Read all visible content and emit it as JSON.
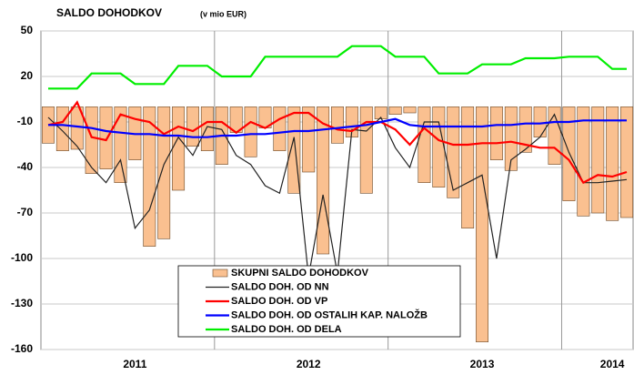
{
  "chart_data": {
    "type": "combo",
    "title": "SALDO DOHODKOV",
    "subtitle": "(v mio EUR)",
    "categories": [
      null,
      null,
      null,
      null,
      null,
      null,
      "2011",
      null,
      null,
      null,
      null,
      null,
      null,
      null,
      null,
      null,
      null,
      null,
      "2012",
      null,
      null,
      null,
      null,
      null,
      null,
      null,
      null,
      null,
      null,
      null,
      "2013",
      null,
      null,
      null,
      null,
      null,
      null,
      null,
      null,
      "2014",
      null
    ],
    "series": [
      {
        "name": "SKUPNI SALDO DOHODKOV",
        "type": "bar",
        "color": "#fac090",
        "values": [
          -24,
          -29,
          -28,
          -44,
          -41,
          -50,
          -35,
          -92,
          -87,
          -55,
          -26,
          -29,
          -38,
          -17,
          -33,
          -14,
          -29,
          -57,
          -43,
          -97,
          -24,
          -20,
          -57,
          -8,
          -5,
          -4,
          -50,
          -53,
          -60,
          -80,
          -155,
          -35,
          -42,
          -30,
          -20,
          -38,
          -62,
          -72,
          -70,
          -75,
          -73
        ]
      },
      {
        "name": "SALDO DOH. OD NN",
        "type": "line",
        "color": "#222222",
        "values": [
          -7,
          -16,
          -26,
          -40,
          -50,
          -35,
          -80,
          -68,
          -38,
          -20,
          -32,
          -13,
          -15,
          -32,
          -38,
          -52,
          -57,
          -20,
          -112,
          -58,
          -110,
          -15,
          -16,
          -7,
          -27,
          -40,
          -10,
          -10,
          -55,
          -50,
          -45,
          -100,
          -35,
          -28,
          -20,
          -5,
          -30,
          -50,
          -50,
          -49,
          -48
        ]
      },
      {
        "name": "SALDO DOH. OD VP",
        "type": "line",
        "color": "#ff0000",
        "values": [
          -12,
          -10,
          3,
          -20,
          -22,
          -5,
          -8,
          -10,
          -18,
          -13,
          -16,
          -10,
          -10,
          -17,
          -10,
          -14,
          -8,
          -4,
          -4,
          -11,
          -15,
          -16,
          -10,
          -10,
          -15,
          -25,
          -14,
          -22,
          -25,
          -25,
          -24,
          -24,
          -23,
          -25,
          -27,
          -27,
          -35,
          -50,
          -45,
          -46,
          -43
        ]
      },
      {
        "name": "SALDO DOH. OD OSTALIH KAP. NALOŽB",
        "type": "line",
        "color": "#0000ff",
        "values": [
          -12,
          -12,
          -13,
          -14,
          -16,
          -17,
          -18,
          -18,
          -19,
          -19,
          -20,
          -20,
          -19,
          -19,
          -18,
          -18,
          -17,
          -16,
          -16,
          -15,
          -14,
          -13,
          -12,
          -10,
          -8,
          -12,
          -13,
          -13,
          -13,
          -13,
          -13,
          -12,
          -12,
          -11,
          -11,
          -10,
          -10,
          -9,
          -9,
          -9,
          -9
        ]
      },
      {
        "name": "SALDO DOH. OD DELA",
        "type": "line",
        "color": "#00ee00",
        "values": [
          12,
          12,
          12,
          22,
          22,
          22,
          15,
          15,
          15,
          27,
          27,
          27,
          20,
          20,
          20,
          33,
          33,
          33,
          33,
          33,
          33,
          40,
          40,
          40,
          33,
          33,
          33,
          22,
          22,
          22,
          28,
          28,
          28,
          32,
          32,
          32,
          33,
          33,
          33,
          25,
          25
        ]
      }
    ],
    "ylim": [
      -160,
      50
    ],
    "yticks": [
      50,
      20,
      -10,
      -40,
      -70,
      -100,
      -130,
      -160
    ],
    "grid": true,
    "legend": "bottom"
  }
}
